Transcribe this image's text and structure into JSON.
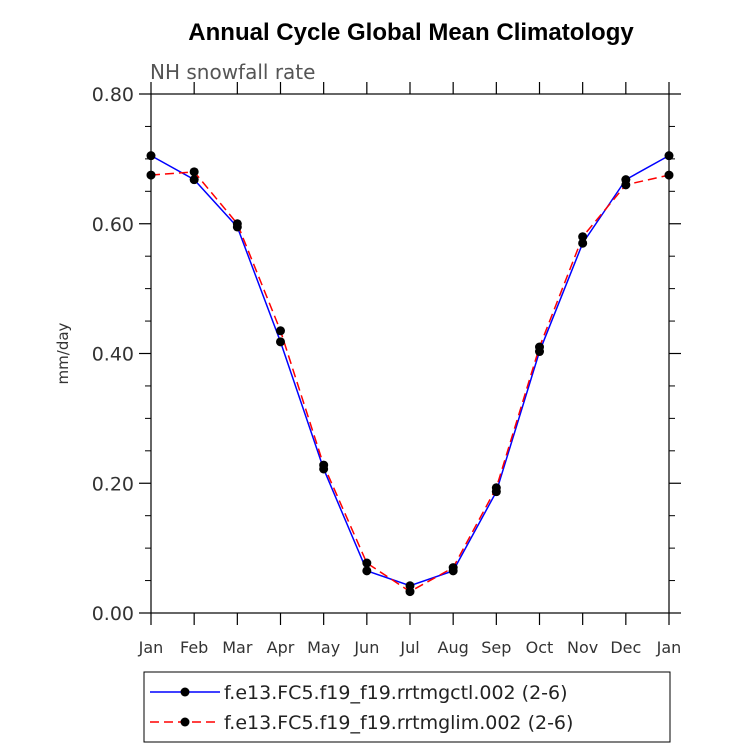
{
  "chart_data": {
    "type": "line",
    "title": "Annual Cycle Global Mean Climatology",
    "subtitle": "NH snowfall rate",
    "xlabel": "",
    "ylabel": "mm/day",
    "ylim": [
      0,
      0.8
    ],
    "yticks": [
      "0.00",
      "0.20",
      "0.40",
      "0.60",
      "0.80"
    ],
    "categories": [
      "Jan",
      "Feb",
      "Mar",
      "Apr",
      "May",
      "Jun",
      "Jul",
      "Aug",
      "Sep",
      "Oct",
      "Nov",
      "Dec",
      "Jan"
    ],
    "legend_position": "bottom",
    "series": [
      {
        "name": "f.e13.FC5.f19_f19.rrtmgctl.002 (2-6)",
        "color": "#0000ff",
        "dash": "solid",
        "values": [
          0.705,
          0.668,
          0.595,
          0.418,
          0.222,
          0.065,
          0.042,
          0.065,
          0.187,
          0.403,
          0.57,
          0.668,
          0.705
        ]
      },
      {
        "name": "f.e13.FC5.f19_f19.rrtmglim.002 (2-6)",
        "color": "#ff0000",
        "dash": "dashed",
        "values": [
          0.675,
          0.68,
          0.6,
          0.435,
          0.228,
          0.077,
          0.033,
          0.07,
          0.193,
          0.41,
          0.58,
          0.66,
          0.675
        ]
      }
    ]
  }
}
